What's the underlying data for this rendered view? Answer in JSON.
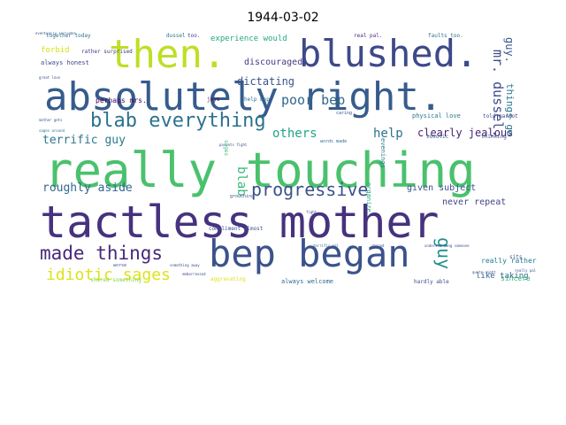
{
  "chart_data": {
    "type": "wordcloud",
    "title": "1944-03-02",
    "words": [
      {
        "text": "really touching",
        "size": 54,
        "color": "#4ac16d"
      },
      {
        "text": "tactless mother",
        "size": 50,
        "color": "#46327e"
      },
      {
        "text": "absolutely right.",
        "size": 44,
        "color": "#365c8d"
      },
      {
        "text": "bep began",
        "size": 42,
        "color": "#3b528b"
      },
      {
        "text": "blushed.",
        "size": 42,
        "color": "#3e4989"
      },
      {
        "text": "then.",
        "size": 44,
        "color": "#bddf26"
      },
      {
        "text": "blab everything",
        "size": 22,
        "color": "#2c728e"
      },
      {
        "text": "made things",
        "size": 21,
        "color": "#482878"
      },
      {
        "text": "progressive",
        "size": 20,
        "color": "#3b528b"
      },
      {
        "text": "idiotic sages",
        "size": 18,
        "color": "#dde318"
      },
      {
        "text": "guy",
        "size": 20,
        "color": "#21918c",
        "rotate": true
      },
      {
        "text": "poor bep",
        "size": 15,
        "color": "#31688e"
      },
      {
        "text": "mr. dussel.",
        "size": 15,
        "color": "#3e4a89",
        "rotate": true
      },
      {
        "text": "terrific guy",
        "size": 13,
        "color": "#2a788e"
      },
      {
        "text": "others",
        "size": 14,
        "color": "#21a685"
      },
      {
        "text": "help",
        "size": 14,
        "color": "#2c728e"
      },
      {
        "text": "roughly aside",
        "size": 13,
        "color": "#31688e"
      },
      {
        "text": "blab",
        "size": 14,
        "color": "#35b779",
        "rotate": true
      },
      {
        "text": "clearly jealous",
        "size": 12,
        "color": "#482173"
      },
      {
        "text": "guy.",
        "size": 12,
        "color": "#38588c",
        "rotate": true
      },
      {
        "text": "things go",
        "size": 11,
        "color": "#2a788e",
        "rotate": true
      },
      {
        "text": "dictating",
        "size": 12,
        "color": "#3b528b"
      },
      {
        "text": "discouraged",
        "size": 10,
        "color": "#443983"
      },
      {
        "text": "experience would",
        "size": 9,
        "color": "#22a884"
      },
      {
        "text": "given subject",
        "size": 10,
        "color": "#3b528b"
      },
      {
        "text": "never repeat",
        "size": 10,
        "color": "#414487"
      },
      {
        "text": "like taking",
        "size": 9,
        "color": "#31688e"
      },
      {
        "text": "really rather",
        "size": 8,
        "color": "#287c8e"
      },
      {
        "text": "sincere",
        "size": 8,
        "color": "#35b779"
      },
      {
        "text": "forbid",
        "size": 9,
        "color": "#d8e219"
      },
      {
        "text": "always honest",
        "size": 7,
        "color": "#3e4989"
      },
      {
        "text": "together today",
        "size": 6,
        "color": "#2c728e"
      },
      {
        "text": "perhaps mrs.",
        "size": 8,
        "color": "#440154"
      },
      {
        "text": "help bep",
        "size": 6,
        "color": "#2c728e"
      },
      {
        "text": "always welcome",
        "size": 7,
        "color": "#31688e"
      },
      {
        "text": "evenings",
        "size": 7,
        "color": "#287c8e",
        "rotate": true
      },
      {
        "text": "organize",
        "size": 7,
        "color": "#22a884",
        "rotate": true
      },
      {
        "text": "physical love",
        "size": 7,
        "color": "#2a788e"
      },
      {
        "text": "real pal.",
        "size": 6,
        "color": "#46327e"
      },
      {
        "text": "faults too.",
        "size": 6,
        "color": "#2c728e"
      },
      {
        "text": "dussel",
        "size": 6,
        "color": "#2c728e"
      },
      {
        "text": "too.",
        "size": 6,
        "color": "#3e4989"
      },
      {
        "text": "joys",
        "size": 6,
        "color": "#440154"
      },
      {
        "text": "idiotic",
        "size": 6,
        "color": "#31688e"
      },
      {
        "text": "thinking",
        "size": 6,
        "color": "#3b528b"
      },
      {
        "text": "told margot",
        "size": 6,
        "color": "#3e4989"
      },
      {
        "text": "compliment almost",
        "size": 6,
        "color": "#3b528b"
      },
      {
        "text": "aggravating",
        "size": 6,
        "color": "#dde318"
      },
      {
        "text": "hardly able",
        "size": 6,
        "color": "#3e4989"
      },
      {
        "text": "shared something",
        "size": 6,
        "color": "#86d549"
      },
      {
        "text": "rather surprised",
        "size": 6,
        "color": "#443983"
      },
      {
        "text": "great love",
        "size": 4,
        "color": "#3b528b"
      },
      {
        "text": "mother gets",
        "size": 4,
        "color": "#3b528b"
      },
      {
        "text": "sages around",
        "size": 4,
        "color": "#2c728e"
      },
      {
        "text": "fight",
        "size": 4,
        "color": "#3e4989"
      },
      {
        "text": "words made",
        "size": 5,
        "color": "#2c728e"
      },
      {
        "text": "grouching",
        "size": 5,
        "color": "#3b528b"
      },
      {
        "text": "sits",
        "size": 6,
        "color": "#38588c"
      },
      {
        "text": "worse",
        "size": 5,
        "color": "#3b528b"
      },
      {
        "text": "something away",
        "size": 4,
        "color": "#3b528b"
      },
      {
        "text": "embarrassed",
        "size": 4,
        "color": "#3e4989"
      },
      {
        "text": "shared",
        "size": 4,
        "color": "#3b528b"
      },
      {
        "text": "understanding someone",
        "size": 4,
        "color": "#3b528b"
      },
      {
        "text": "terrific pal",
        "size": 4,
        "color": "#3b528b"
      },
      {
        "text": "quite right",
        "size": 4,
        "color": "#3b528b"
      },
      {
        "text": "really pal",
        "size": 4,
        "color": "#3b528b"
      },
      {
        "text": "parents fight",
        "size": 4,
        "color": "#3b528b"
      },
      {
        "text": "caring",
        "size": 5,
        "color": "#3b528b"
      },
      {
        "text": "sages",
        "size": 6,
        "color": "#35b779",
        "rotate": true
      },
      {
        "text": "eventually includes",
        "size": 4,
        "color": "#3b528b"
      }
    ]
  }
}
